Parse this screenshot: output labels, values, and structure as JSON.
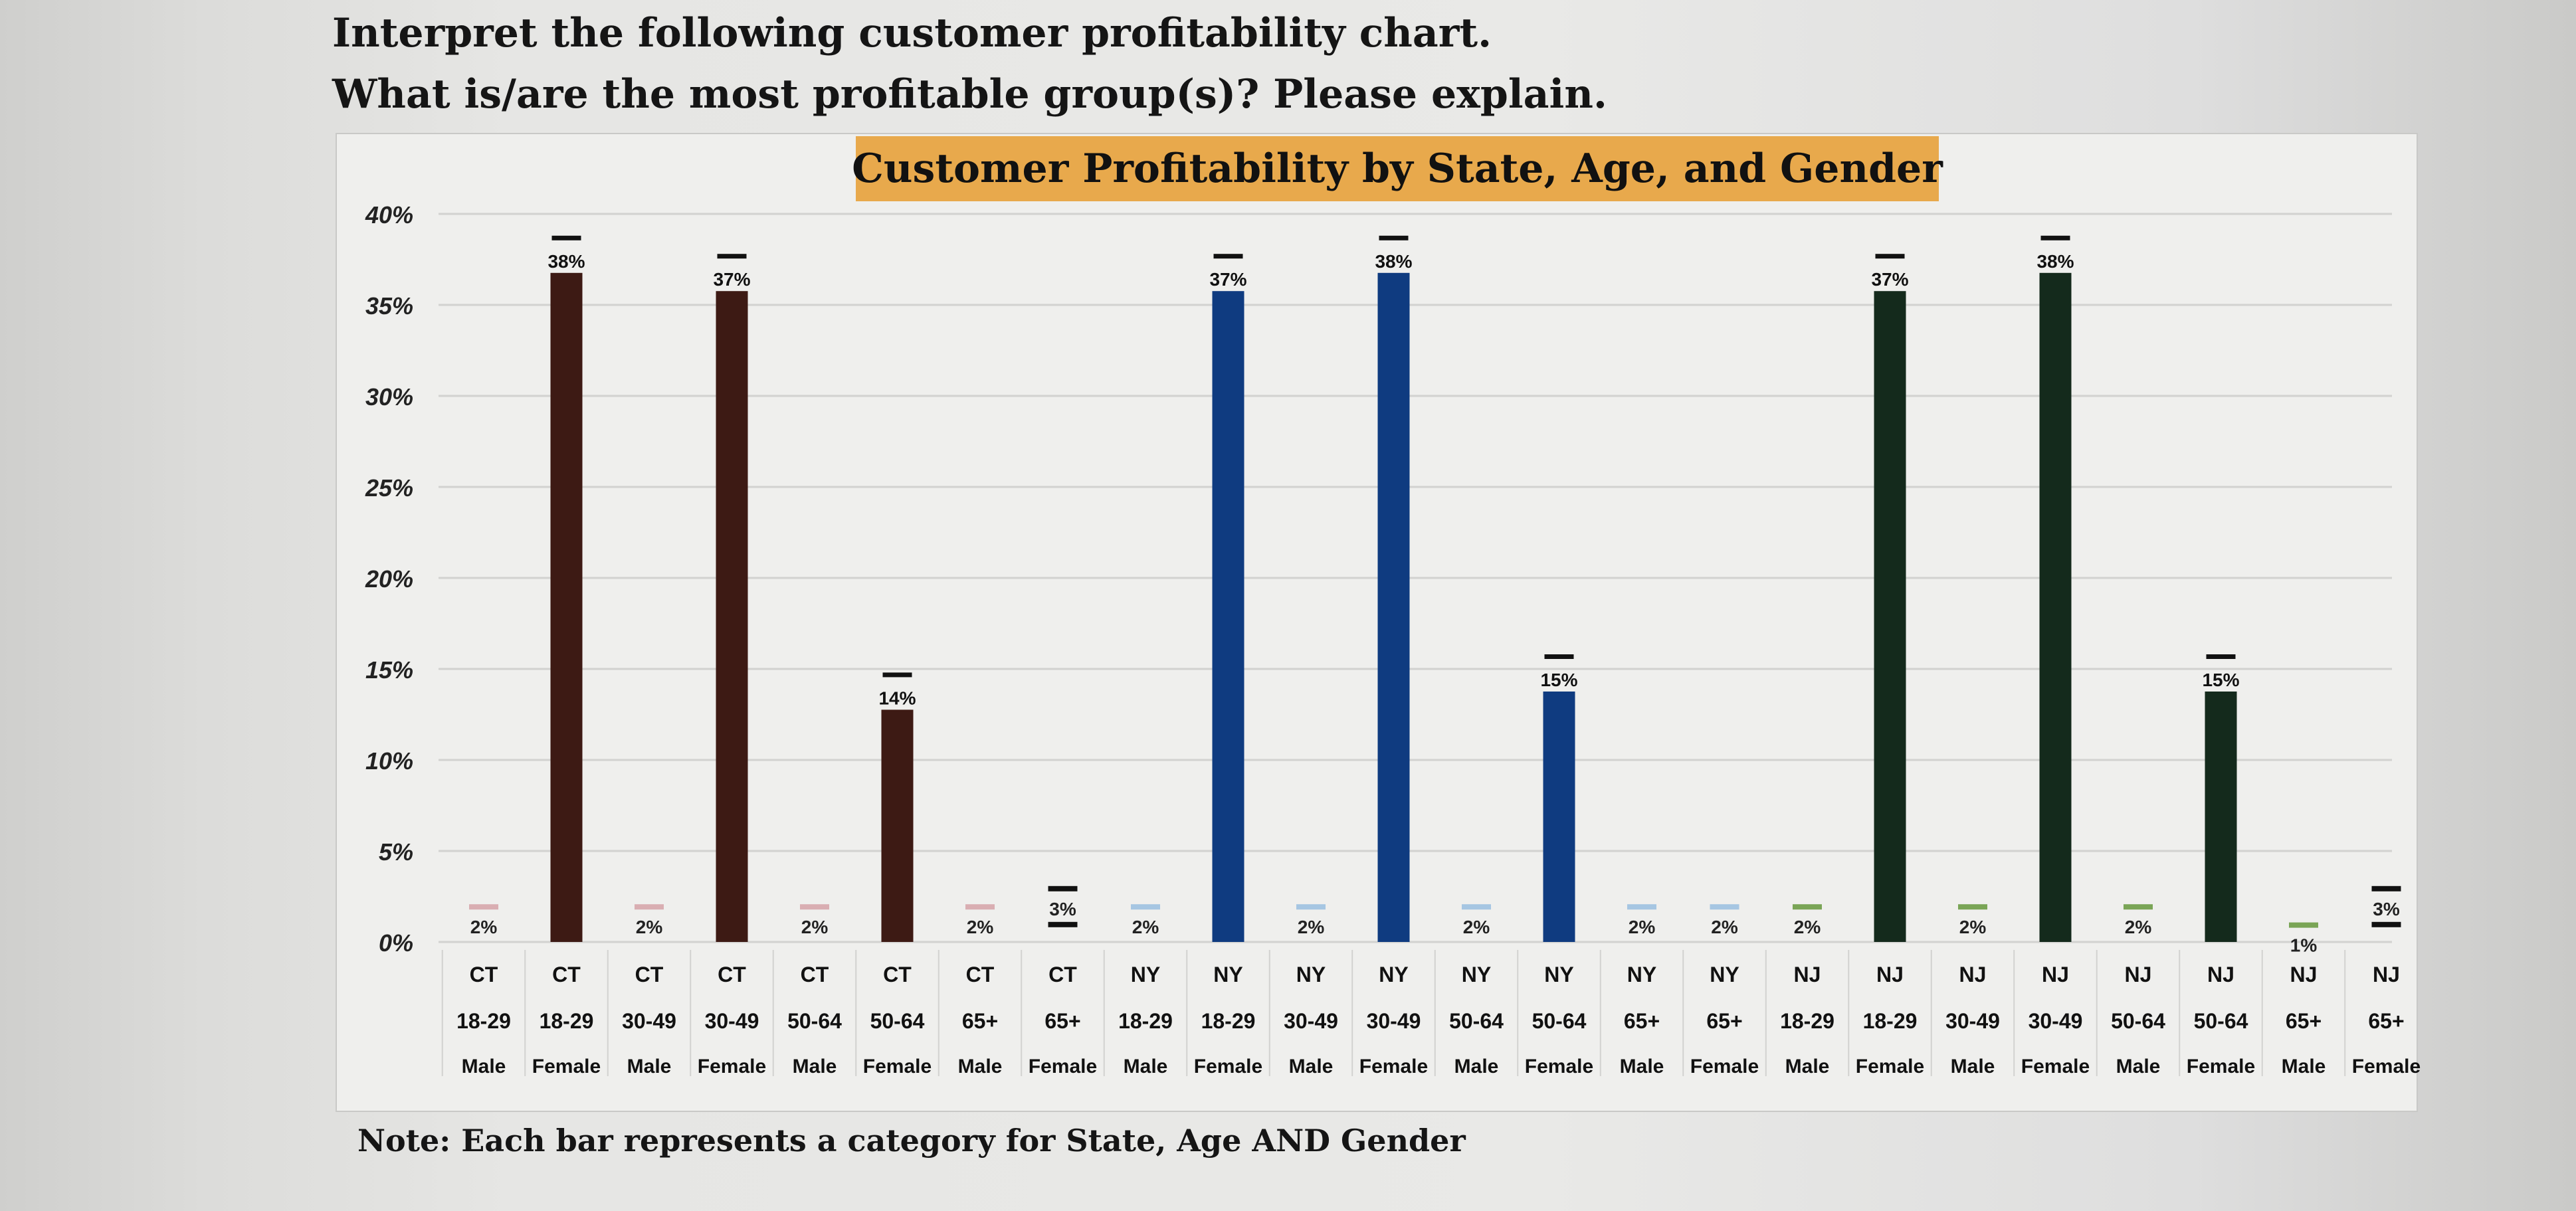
{
  "question": {
    "line1": "Interpret the following customer profitability chart.",
    "line2": "What is/are the most profitable group(s)? Please explain."
  },
  "note": "Note: Each bar represents a category for State, Age AND Gender",
  "colors": {
    "CT": "#3d1a14",
    "NY": "#0f3b80",
    "NJ": "#142a1c",
    "CT_small": "#d9aeb2",
    "NY_small": "#a6c6e2",
    "NJ_small": "#7aa556",
    "small_marker": "#111111",
    "title_background": "#e8a94c",
    "grid": "#d2d2d0"
  },
  "chart_data": {
    "type": "bar",
    "title": "Customer Profitability by State, Age, and Gender",
    "ylim": [
      0,
      40
    ],
    "yticks": [
      0,
      5,
      10,
      15,
      20,
      25,
      30,
      35,
      40
    ],
    "ytick_labels": [
      "0%",
      "5%",
      "10%",
      "15%",
      "20%",
      "25%",
      "30%",
      "35%",
      "40%"
    ],
    "grid": true,
    "xlabel": "",
    "ylabel": "",
    "bars": [
      {
        "state": "CT",
        "age": "18-29",
        "gender": "Male",
        "label": "2%",
        "value": 2
      },
      {
        "state": "CT",
        "age": "18-29",
        "gender": "Female",
        "label": "38%",
        "value": 38
      },
      {
        "state": "CT",
        "age": "30-49",
        "gender": "Male",
        "label": "2%",
        "value": 2
      },
      {
        "state": "CT",
        "age": "30-49",
        "gender": "Female",
        "label": "37%",
        "value": 37
      },
      {
        "state": "CT",
        "age": "50-64",
        "gender": "Male",
        "label": "2%",
        "value": 2
      },
      {
        "state": "CT",
        "age": "50-64",
        "gender": "Female",
        "label": "14%",
        "value": 14
      },
      {
        "state": "CT",
        "age": "65+",
        "gender": "Male",
        "label": "2%",
        "value": 2
      },
      {
        "state": "CT",
        "age": "65+",
        "gender": "Female",
        "label": "3%",
        "value": 3
      },
      {
        "state": "NY",
        "age": "18-29",
        "gender": "Male",
        "label": "2%",
        "value": 2
      },
      {
        "state": "NY",
        "age": "18-29",
        "gender": "Female",
        "label": "37%",
        "value": 37
      },
      {
        "state": "NY",
        "age": "30-49",
        "gender": "Male",
        "label": "2%",
        "value": 2
      },
      {
        "state": "NY",
        "age": "30-49",
        "gender": "Female",
        "label": "38%",
        "value": 38
      },
      {
        "state": "NY",
        "age": "50-64",
        "gender": "Male",
        "label": "2%",
        "value": 2
      },
      {
        "state": "NY",
        "age": "50-64",
        "gender": "Female",
        "label": "15%",
        "value": 15
      },
      {
        "state": "NY",
        "age": "65+",
        "gender": "Male",
        "label": "2%",
        "value": 2
      },
      {
        "state": "NY",
        "age": "65+",
        "gender": "Female",
        "label": "2%",
        "value": 2
      },
      {
        "state": "NJ",
        "age": "18-29",
        "gender": "Male",
        "label": "2%",
        "value": 2
      },
      {
        "state": "NJ",
        "age": "18-29",
        "gender": "Female",
        "label": "37%",
        "value": 37
      },
      {
        "state": "NJ",
        "age": "30-49",
        "gender": "Male",
        "label": "2%",
        "value": 2
      },
      {
        "state": "NJ",
        "age": "30-49",
        "gender": "Female",
        "label": "38%",
        "value": 38
      },
      {
        "state": "NJ",
        "age": "50-64",
        "gender": "Male",
        "label": "2%",
        "value": 2
      },
      {
        "state": "NJ",
        "age": "50-64",
        "gender": "Female",
        "label": "15%",
        "value": 15
      },
      {
        "state": "NJ",
        "age": "65+",
        "gender": "Male",
        "label": "1%",
        "value": 1
      },
      {
        "state": "NJ",
        "age": "65+",
        "gender": "Female",
        "label": "3%",
        "value": 3
      }
    ]
  }
}
